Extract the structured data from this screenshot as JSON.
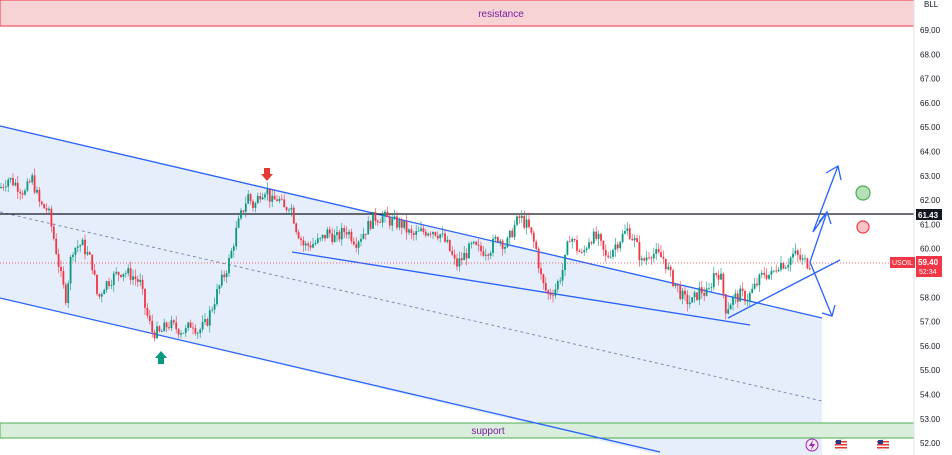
{
  "chart_data": {
    "type": "candlestick",
    "symbol": "USOIL",
    "currency": "BLL",
    "ylim": [
      51.8,
      70.0
    ],
    "y_ticks": [
      52,
      53,
      54,
      55,
      56,
      57,
      58,
      59,
      60,
      61,
      62,
      63,
      64,
      65,
      66,
      67,
      68,
      69
    ],
    "price_tags": [
      {
        "label": "USOIL",
        "value": "59.40",
        "sub": "52:34",
        "color": "#f23645"
      },
      {
        "label": "",
        "value": "61.43",
        "sub": "",
        "color": "#131722"
      }
    ],
    "zones": [
      {
        "label": "resistance",
        "from": 69.2,
        "to": 70.0,
        "fill": "#f7d1d4",
        "border": "#f23645"
      },
      {
        "label": "support",
        "from": 52.2,
        "to": 52.9,
        "fill": "#d7ecd8",
        "border": "#4caf50"
      }
    ],
    "horizontal_line": 61.43,
    "price_points": [
      [
        0,
        62.5
      ],
      [
        8,
        62.9
      ],
      [
        15,
        62.7
      ],
      [
        25,
        62.3
      ],
      [
        32,
        62.9
      ],
      [
        40,
        61.8
      ],
      [
        48,
        61.6
      ],
      [
        55,
        60.2
      ],
      [
        62,
        58.6
      ],
      [
        66,
        58.0
      ],
      [
        72,
        60.0
      ],
      [
        82,
        60.2
      ],
      [
        92,
        59.4
      ],
      [
        98,
        57.9
      ],
      [
        104,
        58.5
      ],
      [
        112,
        58.8
      ],
      [
        122,
        59.1
      ],
      [
        132,
        58.9
      ],
      [
        140,
        58.6
      ],
      [
        146,
        57.4
      ],
      [
        152,
        56.6
      ],
      [
        160,
        56.5
      ],
      [
        168,
        56.9
      ],
      [
        178,
        56.7
      ],
      [
        186,
        56.6
      ],
      [
        192,
        57.0
      ],
      [
        198,
        56.6
      ],
      [
        206,
        56.9
      ],
      [
        212,
        57.6
      ],
      [
        218,
        58.3
      ],
      [
        224,
        58.9
      ],
      [
        230,
        59.6
      ],
      [
        236,
        60.7
      ],
      [
        242,
        61.5
      ],
      [
        248,
        62.2
      ],
      [
        254,
        61.7
      ],
      [
        260,
        62.3
      ],
      [
        266,
        62.5
      ],
      [
        272,
        61.9
      ],
      [
        278,
        62.1
      ],
      [
        284,
        61.6
      ],
      [
        290,
        61.9
      ],
      [
        296,
        60.9
      ],
      [
        304,
        60.1
      ],
      [
        312,
        60.2
      ],
      [
        320,
        60.3
      ],
      [
        328,
        60.7
      ],
      [
        336,
        60.4
      ],
      [
        346,
        60.8
      ],
      [
        356,
        60.3
      ],
      [
        366,
        60.8
      ],
      [
        374,
        61.3
      ],
      [
        384,
        61.3
      ],
      [
        392,
        61.1
      ],
      [
        402,
        61.0
      ],
      [
        412,
        60.5
      ],
      [
        422,
        60.7
      ],
      [
        432,
        60.8
      ],
      [
        440,
        60.6
      ],
      [
        448,
        60.1
      ],
      [
        456,
        59.3
      ],
      [
        464,
        59.7
      ],
      [
        472,
        60.1
      ],
      [
        480,
        59.9
      ],
      [
        490,
        60.0
      ],
      [
        498,
        60.5
      ],
      [
        506,
        60.1
      ],
      [
        514,
        60.9
      ],
      [
        520,
        61.3
      ],
      [
        528,
        60.9
      ],
      [
        536,
        60.0
      ],
      [
        542,
        58.6
      ],
      [
        548,
        58.1
      ],
      [
        556,
        58.4
      ],
      [
        564,
        59.3
      ],
      [
        570,
        60.6
      ],
      [
        576,
        60.1
      ],
      [
        582,
        59.7
      ],
      [
        590,
        60.5
      ],
      [
        598,
        60.4
      ],
      [
        606,
        59.6
      ],
      [
        614,
        60.1
      ],
      [
        622,
        60.5
      ],
      [
        628,
        60.8
      ],
      [
        636,
        60.2
      ],
      [
        642,
        59.4
      ],
      [
        650,
        59.9
      ],
      [
        658,
        59.7
      ],
      [
        664,
        59.6
      ],
      [
        670,
        58.9
      ],
      [
        676,
        58.5
      ],
      [
        684,
        57.9
      ],
      [
        692,
        57.8
      ],
      [
        700,
        58.3
      ],
      [
        708,
        58.1
      ],
      [
        714,
        59.0
      ],
      [
        720,
        59.0
      ],
      [
        726,
        57.5
      ],
      [
        732,
        57.9
      ],
      [
        740,
        58.1
      ],
      [
        748,
        58.0
      ],
      [
        756,
        58.5
      ],
      [
        764,
        59.0
      ],
      [
        772,
        58.9
      ],
      [
        778,
        59.4
      ],
      [
        786,
        59.4
      ],
      [
        794,
        59.8
      ],
      [
        802,
        59.5
      ],
      [
        810,
        59.4
      ]
    ],
    "markers": [
      {
        "type": "arrow-down",
        "x": 267,
        "value": 63.2,
        "color": "#e53935"
      },
      {
        "type": "arrow-up",
        "x": 161,
        "value": 55.4,
        "color": "#089981"
      }
    ],
    "projection_circles": [
      {
        "value": 62.3,
        "color": "#4caf50"
      },
      {
        "value": 60.9,
        "color": "#f23645"
      }
    ]
  },
  "labels": {
    "resistance": "resistance",
    "support": "support",
    "symbol": "USOIL",
    "current_price": "59.40",
    "countdown": "52:34",
    "line_price": "61.43",
    "currency": "BLL"
  },
  "colors": {
    "channel_line": "#2962ff",
    "channel_fill": "#e3ecfb",
    "candle_up": "#089981",
    "candle_down": "#f23645"
  },
  "icons": [
    "lightning-icon",
    "us-flag-icon",
    "us-flag-icon"
  ]
}
